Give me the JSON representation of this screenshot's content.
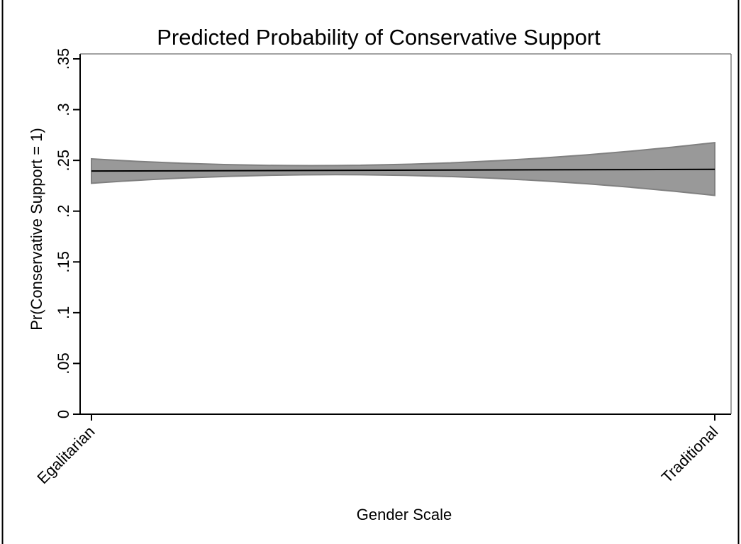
{
  "chart_data": {
    "type": "area",
    "title": "Predicted Probability of Conservative Support",
    "xlabel": "Gender Scale",
    "ylabel": "Pr(Conservative Support = 1)",
    "x_tick_labels": [
      "Egalitarian",
      "Traditional"
    ],
    "x_tick_values": [
      0,
      1
    ],
    "xlim": [
      0,
      1
    ],
    "ylim": [
      0,
      0.35
    ],
    "y_ticks": [
      0,
      0.05,
      0.1,
      0.15,
      0.2,
      0.25,
      0.3,
      0.35
    ],
    "y_tick_labels": [
      "0",
      ".05",
      ".1",
      ".15",
      ".2",
      ".25",
      ".3",
      ".35"
    ],
    "grid": false,
    "series": [
      {
        "kind": "line",
        "x": [
          0,
          1
        ],
        "y": [
          0.2395,
          0.2412
        ]
      },
      {
        "kind": "confidence-band",
        "x": [
          0,
          0.3,
          1
        ],
        "lower": [
          0.2275,
          0.2355,
          0.2155
        ],
        "upper": [
          0.2515,
          0.245,
          0.2675
        ]
      }
    ],
    "colors": {
      "band_fill": "#999999",
      "band_edge": "#808080",
      "line": "#000000",
      "axis": "#000000",
      "background": "#ffffff",
      "frame": "#000000"
    }
  }
}
